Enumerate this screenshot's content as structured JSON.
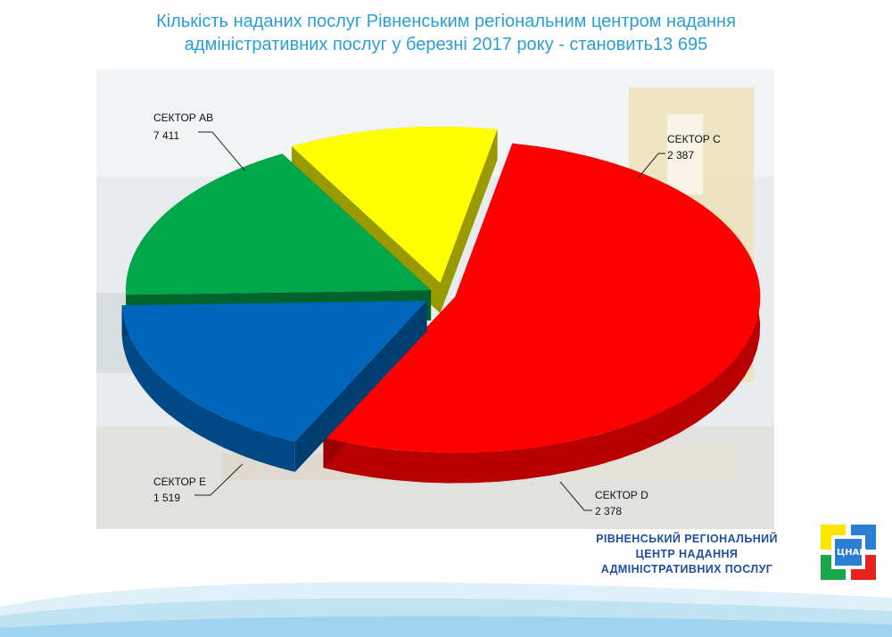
{
  "title_line1": "Кількість наданих послуг Рівненським регіональним центром надання",
  "title_line2": "адміністративних послуг у березні 2017 року - становить13 695",
  "org_line1": "РІВНЕНСЬКИЙ РЕГІОНАЛЬНИЙ",
  "org_line2": "ЦЕНТР НАДАННЯ",
  "org_line3": "АДМІНІСТРАТИВНИХ ПОСЛУГ",
  "logo_text": "ЦНАП",
  "colors": {
    "title": "#2a9fd6",
    "org": "#1f4e9c"
  },
  "chart_data": {
    "type": "pie",
    "total": 13695,
    "slices": [
      {
        "name": "СЕКТОР AB",
        "value": 7411,
        "value_label": "7 411",
        "color": "#ff0000"
      },
      {
        "name": "СЕКТОР C",
        "value": 2387,
        "value_label": "2 387",
        "color": "#0066bb"
      },
      {
        "name": "СЕКТОР D",
        "value": 2378,
        "value_label": "2 378",
        "color": "#00a84b"
      },
      {
        "name": "СЕКТОР E",
        "value": 1519,
        "value_label": "1 519",
        "color": "#ffff00"
      }
    ]
  }
}
